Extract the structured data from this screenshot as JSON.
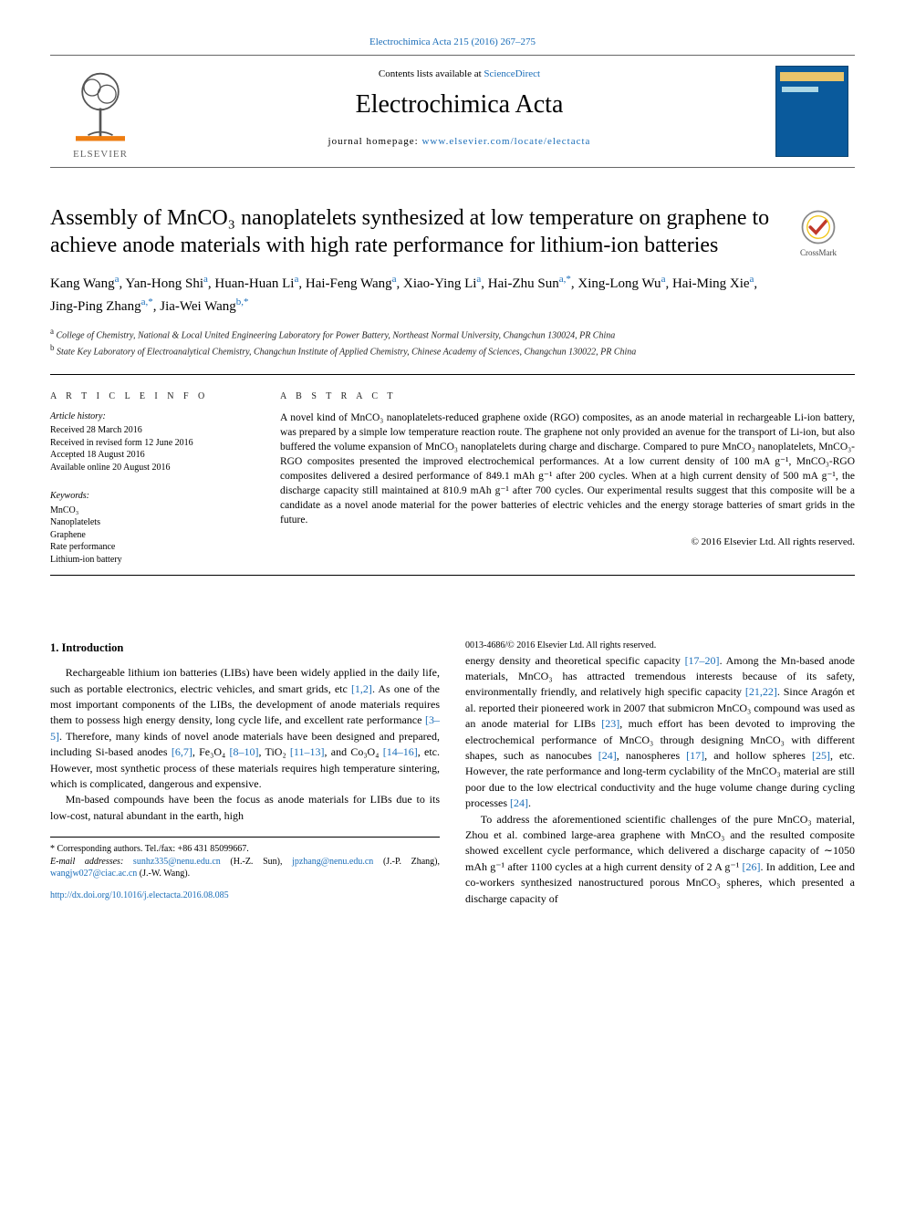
{
  "colors": {
    "link": "#1a6db8",
    "text": "#000000",
    "background": "#ffffff",
    "rule": "#000000",
    "elsevier_orange": "#ee7d11",
    "elsevier_gray": "#555555",
    "cover_blue": "#0a5a9c"
  },
  "top_link": {
    "prefix": "Electrochimica Acta 215 (2016) 267–275"
  },
  "masthead": {
    "contents_prefix": "Contents lists available at ",
    "contents_link": "ScienceDirect",
    "journal": "Electrochimica Acta",
    "homepage_prefix": "journal homepage: ",
    "homepage_url": "www.elsevier.com/locate/electacta",
    "publisher_label": "ELSEVIER"
  },
  "crossmark_label": "CrossMark",
  "title": "Assembly of MnCO₃ nanoplatelets synthesized at low temperature on graphene to achieve anode materials with high rate performance for lithium-ion batteries",
  "authors_html": "Kang Wang<sup>a</sup>, Yan-Hong Shi<sup>a</sup>, Huan-Huan Li<sup>a</sup>, Hai-Feng Wang<sup>a</sup>, Xiao-Ying Li<sup>a</sup>, Hai-Zhu Sun<sup>a,*</sup>, Xing-Long Wu<sup>a</sup>, Hai-Ming Xie<sup>a</sup>, Jing-Ping Zhang<sup>a,*</sup>, Jia-Wei Wang<sup>b,*</sup>",
  "affiliations": [
    {
      "key": "a",
      "text": "College of Chemistry, National & Local United Engineering Laboratory for Power Battery, Northeast Normal University, Changchun 130024, PR China"
    },
    {
      "key": "b",
      "text": "State Key Laboratory of Electroanalytical Chemistry, Changchun Institute of Applied Chemistry, Chinese Academy of Sciences, Changchun 130022, PR China"
    }
  ],
  "article_info": {
    "heading": "A R T I C L E  I N F O",
    "history_label": "Article history:",
    "history": [
      "Received 28 March 2016",
      "Received in revised form 12 June 2016",
      "Accepted 18 August 2016",
      "Available online 20 August 2016"
    ],
    "keywords_label": "Keywords:",
    "keywords": [
      "MnCO₃",
      "Nanoplatelets",
      "Graphene",
      "Rate performance",
      "Lithium-ion battery"
    ]
  },
  "abstract": {
    "heading": "A B S T R A C T",
    "text": "A novel kind of MnCO₃ nanoplatelets-reduced graphene oxide (RGO) composites, as an anode material in rechargeable Li-ion battery, was prepared by a simple low temperature reaction route. The graphene not only provided an avenue for the transport of Li-ion, but also buffered the volume expansion of MnCO₃ nanoplatelets during charge and discharge. Compared to pure MnCO₃ nanoplatelets, MnCO₃-RGO composites presented the improved electrochemical performances. At a low current density of 100 mA g⁻¹, MnCO₃-RGO composites delivered a desired performance of 849.1 mAh g⁻¹ after 200 cycles. When at a high current density of 500 mA g⁻¹, the discharge capacity still maintained at 810.9 mAh g⁻¹ after 700 cycles. Our experimental results suggest that this composite will be a candidate as a novel anode material for the power batteries of electric vehicles and the energy storage batteries of smart grids in the future.",
    "copyright": "© 2016 Elsevier Ltd. All rights reserved."
  },
  "body": {
    "section_heading": "1. Introduction",
    "p1": "Rechargeable lithium ion batteries (LIBs) have been widely applied in the daily life, such as portable electronics, electric vehicles, and smart grids, etc [1,2]. As one of the most important components of the LIBs, the development of anode materials requires them to possess high energy density, long cycle life, and excellent rate performance [3–5]. Therefore, many kinds of novel anode materials have been designed and prepared, including Si-based anodes [6,7], Fe₃O₄ [8–10], TiO₂ [11–13], and Co₃O₄ [14–16], etc. However, most synthetic process of these materials requires high temperature sintering, which is complicated, dangerous and expensive.",
    "p2": "Mn-based compounds have been the focus as anode materials for LIBs due to its low-cost, natural abundant in the earth, high",
    "p3": "energy density and theoretical specific capacity [17–20]. Among the Mn-based anode materials, MnCO₃ has attracted tremendous interests because of its safety, environmentally friendly, and relatively high specific capacity [21,22]. Since Aragón et al. reported their pioneered work in 2007 that submicron MnCO₃ compound was used as an anode material for LIBs [23], much effort has been devoted to improving the electrochemical performance of MnCO₃ through designing MnCO₃ with different shapes, such as nanocubes [24], nanospheres [17], and hollow spheres [25], etc. However, the rate performance and long-term cyclability of the MnCO₃ material are still poor due to the low electrical conductivity and the huge volume change during cycling processes [24].",
    "p4": "To address the aforementioned scientific challenges of the pure MnCO₃ material, Zhou et al. combined large-area graphene with MnCO₃ and the resulted composite showed excellent cycle performance, which delivered a discharge capacity of ∼1050 mAh g⁻¹ after 1100 cycles at a high current density of 2 A g⁻¹ [26]. In addition, Lee and co-workers synthesized nanostructured porous MnCO₃ spheres, which presented a discharge capacity of"
  },
  "footnotes": {
    "corresponding": "* Corresponding authors. Tel./fax: +86 431 85099667.",
    "emails_label": "E-mail addresses: ",
    "emails": [
      {
        "addr": "sunhz335@nenu.edu.cn",
        "who": "(H.-Z. Sun)"
      },
      {
        "addr": "jpzhang@nenu.edu.cn",
        "who": "(J.-P. Zhang)"
      },
      {
        "addr": "wangjw027@ciac.ac.cn",
        "who": "(J.-W. Wang)."
      }
    ]
  },
  "doi": {
    "url": "http://dx.doi.org/10.1016/j.electacta.2016.08.085",
    "issn_line": "0013-4686/© 2016 Elsevier Ltd. All rights reserved."
  }
}
